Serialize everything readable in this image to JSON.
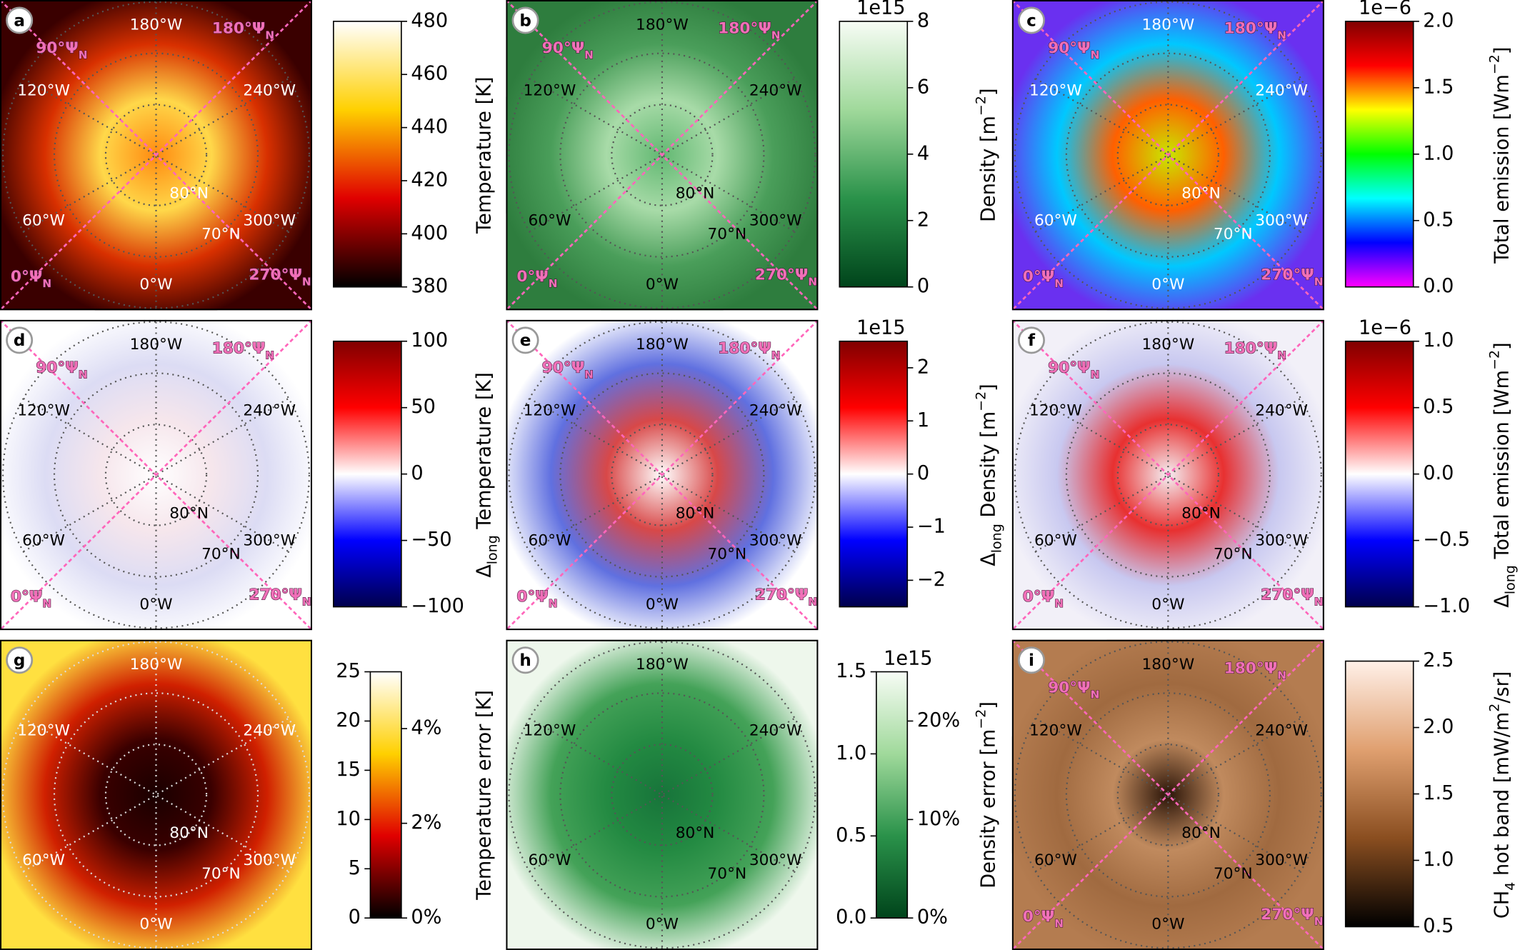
{
  "chart_data": [
    {
      "type": "map",
      "label": "a",
      "label_color": "#ffffff",
      "lon_labels": [
        "180°W",
        "120°W",
        "240°W",
        "60°W",
        "300°W",
        "0°W"
      ],
      "lat_labels": [
        "80°N",
        "70°N"
      ],
      "mag_labels": [
        [
          {
            "text": "90°Ψ"
          },
          {
            "sub": "N"
          }
        ],
        [
          {
            "text": "180°Ψ"
          },
          {
            "sub": "N"
          }
        ],
        [
          {
            "text": "0°Ψ"
          },
          {
            "sub": "N"
          }
        ],
        [
          {
            "text": "270°Ψ"
          },
          {
            "sub": "N"
          }
        ]
      ],
      "map_colors": [
        "#ff8a10",
        "#ffd84a",
        "#d83000",
        "#3a0000"
      ],
      "colorbar": {
        "ylim": [
          380,
          480
        ],
        "yticks": [
          380,
          400,
          420,
          440,
          460,
          480
        ],
        "label": [
          {
            "text": "Temperature [K]"
          }
        ],
        "colormap": [
          "#000000",
          "#e00000",
          "#ffd000",
          "#ffffff"
        ]
      }
    },
    {
      "type": "map",
      "label": "b",
      "label_color": "#000000",
      "lon_labels": [
        "180°W",
        "120°W",
        "240°W",
        "60°W",
        "300°W",
        "0°W"
      ],
      "lat_labels": [
        "80°N",
        "70°N"
      ],
      "mag_labels": [
        [
          {
            "text": "90°Ψ"
          },
          {
            "sub": "N"
          }
        ],
        [
          {
            "text": "180°Ψ"
          },
          {
            "sub": "N"
          }
        ],
        [
          {
            "text": "0°Ψ"
          },
          {
            "sub": "N"
          }
        ],
        [
          {
            "text": "270°Ψ"
          },
          {
            "sub": "N"
          }
        ]
      ],
      "map_colors": [
        "#62b872",
        "#a8dba8",
        "#4a9e5a",
        "#2e7d3e"
      ],
      "colorbar": {
        "ylim": [
          0,
          8
        ],
        "yticks": [
          0,
          2,
          4,
          6,
          8
        ],
        "offset": "1e15",
        "label": [
          {
            "text": "Density [m"
          },
          {
            "sup": "−2"
          },
          {
            "text": "]"
          }
        ],
        "colormap": [
          "#00441b",
          "#2a924a",
          "#a0d99b",
          "#f7fcf5"
        ]
      }
    },
    {
      "type": "map",
      "label": "c",
      "label_color": "#ffffff",
      "lon_labels": [
        "180°W",
        "120°W",
        "240°W",
        "60°W",
        "300°W",
        "0°W"
      ],
      "lat_labels": [
        "80°N",
        "70°N"
      ],
      "mag_labels": [
        [
          {
            "text": "90°Ψ"
          },
          {
            "sub": "N"
          }
        ],
        [
          {
            "text": "180°Ψ"
          },
          {
            "sub": "N"
          }
        ],
        [
          {
            "text": "0°Ψ"
          },
          {
            "sub": "N"
          }
        ],
        [
          {
            "text": "270°Ψ"
          },
          {
            "sub": "N"
          }
        ]
      ],
      "map_colors": [
        "#c8e800",
        "#ff6000",
        "#00c8ff",
        "#6a30f0"
      ],
      "colorbar": {
        "ylim": [
          0,
          2
        ],
        "yticks": [
          {
            "value": 0,
            "label": "0.0"
          },
          {
            "value": 0.5,
            "label": "0.5"
          },
          {
            "value": 1,
            "label": "1.0"
          },
          {
            "value": 1.5,
            "label": "1.5"
          },
          {
            "value": 2,
            "label": "2.0"
          }
        ],
        "offset": "1e−6",
        "label": [
          {
            "text": "Total emission [Wm"
          },
          {
            "sup": "−2"
          },
          {
            "text": "]"
          }
        ],
        "colormap": [
          "#ff00ff",
          "#0000ff",
          "#00ffff",
          "#00ff00",
          "#ffff00",
          "#ff0000",
          "#800000"
        ]
      }
    },
    {
      "type": "map",
      "label": "d",
      "label_color": "#000000",
      "lon_labels": [
        "180°W",
        "120°W",
        "240°W",
        "60°W",
        "300°W",
        "0°W"
      ],
      "lat_labels": [
        "80°N",
        "70°N"
      ],
      "mag_labels": [
        [
          {
            "text": "90°Ψ"
          },
          {
            "sub": "N"
          }
        ],
        [
          {
            "text": "180°Ψ"
          },
          {
            "sub": "N"
          }
        ],
        [
          {
            "text": "0°Ψ"
          },
          {
            "sub": "N"
          }
        ],
        [
          {
            "text": "270°Ψ"
          },
          {
            "sub": "N"
          }
        ]
      ],
      "map_colors": [
        "#ffffff",
        "#f6e6ec",
        "#dcdcf4",
        "#ffffff"
      ],
      "colorbar": {
        "ylim": [
          -100,
          100
        ],
        "yticks": [
          {
            "value": -100,
            "label": "−100"
          },
          {
            "value": -50,
            "label": "−50"
          },
          0,
          50,
          100
        ],
        "label": [
          {
            "text": "Δ"
          },
          {
            "sub": "long"
          },
          {
            "text": " Temperature [K]"
          }
        ],
        "colormap": [
          "#00004c",
          "#0000ff",
          "#ffffff",
          "#ff0000",
          "#800000"
        ]
      }
    },
    {
      "type": "map",
      "label": "e",
      "label_color": "#000000",
      "lon_labels": [
        "180°W",
        "120°W",
        "240°W",
        "60°W",
        "300°W",
        "0°W"
      ],
      "lat_labels": [
        "80°N",
        "70°N"
      ],
      "mag_labels": [
        [
          {
            "text": "90°Ψ"
          },
          {
            "sub": "N"
          }
        ],
        [
          {
            "text": "180°Ψ"
          },
          {
            "sub": "N"
          }
        ],
        [
          {
            "text": "0°Ψ"
          },
          {
            "sub": "N"
          }
        ],
        [
          {
            "text": "270°Ψ"
          },
          {
            "sub": "N"
          }
        ]
      ],
      "map_colors": [
        "#ffffff",
        "#d84848",
        "#6070e0",
        "#ffffff"
      ],
      "colorbar": {
        "ylim": [
          -2.5,
          2.5
        ],
        "yticks": [
          {
            "value": -2,
            "label": "−2"
          },
          {
            "value": -1,
            "label": "−1"
          },
          0,
          1,
          2
        ],
        "offset": "1e15",
        "label": [
          {
            "text": "Δ"
          },
          {
            "sub": "long"
          },
          {
            "text": " Density [m"
          },
          {
            "sup": "−2"
          },
          {
            "text": "]"
          }
        ],
        "colormap": [
          "#00004c",
          "#0000ff",
          "#ffffff",
          "#ff0000",
          "#800000"
        ]
      }
    },
    {
      "type": "map",
      "label": "f",
      "label_color": "#000000",
      "lon_labels": [
        "180°W",
        "120°W",
        "240°W",
        "60°W",
        "300°W",
        "0°W"
      ],
      "lat_labels": [
        "80°N",
        "70°N"
      ],
      "mag_labels": [
        [
          {
            "text": "90°Ψ"
          },
          {
            "sub": "N"
          }
        ],
        [
          {
            "text": "180°Ψ"
          },
          {
            "sub": "N"
          }
        ],
        [
          {
            "text": "0°Ψ"
          },
          {
            "sub": "N"
          }
        ],
        [
          {
            "text": "270°Ψ"
          },
          {
            "sub": "N"
          }
        ]
      ],
      "map_colors": [
        "#f4f0f4",
        "#e83030",
        "#c8c8f0",
        "#f2f0f8"
      ],
      "colorbar": {
        "ylim": [
          -1,
          1
        ],
        "yticks": [
          {
            "value": -1,
            "label": "−1.0"
          },
          {
            "value": -0.5,
            "label": "−0.5"
          },
          {
            "value": 0,
            "label": "0.0"
          },
          {
            "value": 0.5,
            "label": "0.5"
          },
          {
            "value": 1,
            "label": "1.0"
          }
        ],
        "offset": "1e−6",
        "label": [
          {
            "text": "Δ"
          },
          {
            "sub": "long"
          },
          {
            "text": " Total emission [Wm"
          },
          {
            "sup": "−2"
          },
          {
            "text": "]"
          }
        ],
        "colormap": [
          "#00004c",
          "#0000ff",
          "#ffffff",
          "#ff0000",
          "#800000"
        ]
      }
    },
    {
      "type": "map",
      "label": "g",
      "label_color": "#ffffff",
      "lon_labels": [
        "180°W",
        "120°W",
        "240°W",
        "60°W",
        "300°W",
        "0°W"
      ],
      "lat_labels": [
        "80°N",
        "70°N"
      ],
      "map_colors": [
        "#1a0000",
        "#3a0000",
        "#d02000",
        "#ffe040"
      ],
      "colorbar": {
        "ylim": [
          0,
          25
        ],
        "yticks": [
          0,
          5,
          10,
          15,
          20,
          25
        ],
        "y2lim": [
          0,
          5.2
        ],
        "y2ticks": [
          {
            "value": 0,
            "label": "0%"
          },
          {
            "value": 2,
            "label": "2%"
          },
          {
            "value": 4,
            "label": "4%"
          }
        ],
        "label": [
          {
            "text": "Temperature error [K]"
          }
        ],
        "colormap": [
          "#000000",
          "#e00000",
          "#ffd000",
          "#ffffff"
        ]
      }
    },
    {
      "type": "map",
      "label": "h",
      "label_color": "#000000",
      "lon_labels": [
        "180°W",
        "120°W",
        "240°W",
        "60°W",
        "300°W",
        "0°W"
      ],
      "lat_labels": [
        "80°N",
        "70°N"
      ],
      "map_colors": [
        "#17743a",
        "#238a42",
        "#44a258",
        "#eef7ec"
      ],
      "colorbar": {
        "ylim": [
          0,
          1.5
        ],
        "yticks": [
          {
            "value": 0,
            "label": "0.0"
          },
          {
            "value": 0.5,
            "label": "0.5"
          },
          {
            "value": 1,
            "label": "1.0"
          },
          {
            "value": 1.5,
            "label": "1.5"
          }
        ],
        "offset": "1e15",
        "y2lim": [
          0,
          25
        ],
        "y2ticks": [
          {
            "value": 0,
            "label": "0%"
          },
          {
            "value": 10,
            "label": "10%"
          },
          {
            "value": 20,
            "label": "20%"
          }
        ],
        "label": [
          {
            "text": "Density error [m"
          },
          {
            "sup": "−2"
          },
          {
            "text": "]"
          }
        ],
        "colormap": [
          "#00441b",
          "#2a924a",
          "#a0d99b",
          "#f7fcf5"
        ]
      }
    },
    {
      "type": "map",
      "label": "i",
      "label_color": "#000000",
      "lon_labels": [
        "180°W",
        "120°W",
        "240°W",
        "60°W",
        "300°W",
        "0°W"
      ],
      "lat_labels": [
        "80°N",
        "70°N"
      ],
      "mag_labels": [
        [
          {
            "text": "90°Ψ"
          },
          {
            "sub": "N"
          }
        ],
        [
          {
            "text": "180°Ψ"
          },
          {
            "sub": "N"
          }
        ],
        [
          {
            "text": "0°Ψ"
          },
          {
            "sub": "N"
          }
        ],
        [
          {
            "text": "270°Ψ"
          },
          {
            "sub": "N"
          }
        ]
      ],
      "map_colors": [
        "#2a1408",
        "#c08a5e",
        "#a06a40",
        "#b47c50"
      ],
      "colorbar": {
        "ylim": [
          0.5,
          2.5
        ],
        "yticks": [
          {
            "value": 0.5,
            "label": "0.5"
          },
          {
            "value": 1,
            "label": "1.0"
          },
          {
            "value": 1.5,
            "label": "1.5"
          },
          {
            "value": 2,
            "label": "2.0"
          },
          {
            "value": 2.5,
            "label": "2.5"
          }
        ],
        "label": [
          {
            "text": "CH"
          },
          {
            "sub": "4"
          },
          {
            "text": " hot band [mW/m"
          },
          {
            "sup": "2"
          },
          {
            "text": "/sr]"
          }
        ],
        "colormap": [
          "#000000",
          "#8a4e20",
          "#e0a070",
          "#fff0e8"
        ]
      }
    }
  ]
}
